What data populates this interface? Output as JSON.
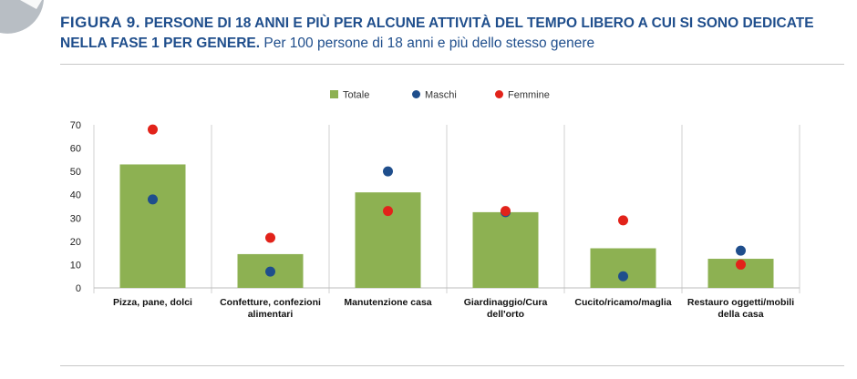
{
  "header": {
    "fig_label": "FIGURA 9.",
    "title_line1": "PERSONE DI 18 ANNI E PIÙ PER ALCUNE ATTIVITÀ DEL TEMPO LIBERO A CUI SI SONO DEDICATE",
    "title_line2_bold": "NELLA FASE 1 PER GENERE.",
    "title_line2_rest": "Per 100 persone di 18 anni e più dello stesso genere"
  },
  "chart_data": {
    "type": "bar",
    "categories": [
      [
        "Pizza, pane, dolci"
      ],
      [
        "Confetture, confezioni",
        "alimentari"
      ],
      [
        "Manutenzione casa"
      ],
      [
        "Giardinaggio/Cura",
        "dell'orto"
      ],
      [
        "Cucito/ricamo/maglia"
      ],
      [
        "Restauro oggetti/mobili",
        "della casa"
      ]
    ],
    "series": [
      {
        "name": "Totale",
        "mark": "bar",
        "color": "#8db152",
        "values": [
          53,
          14.5,
          41,
          32.5,
          17,
          12.5
        ]
      },
      {
        "name": "Maschi",
        "mark": "dot",
        "color": "#1f4e8c",
        "values": [
          38,
          7,
          50,
          32.5,
          5,
          16
        ]
      },
      {
        "name": "Femmine",
        "mark": "dot",
        "color": "#e2231a",
        "values": [
          68,
          21.5,
          33,
          33,
          29,
          10
        ]
      }
    ],
    "ylim": [
      0,
      70
    ],
    "yticks": [
      0,
      10,
      20,
      30,
      40,
      50,
      60,
      70
    ],
    "grid": "vertical-category-separators",
    "legend_position": "top-center"
  }
}
